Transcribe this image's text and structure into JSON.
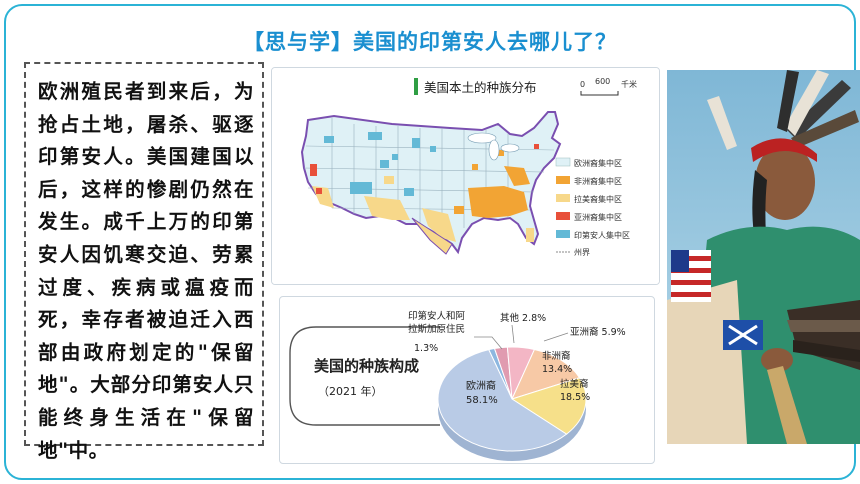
{
  "slide": {
    "title": "【思与学】美国的印第安人去哪儿了？",
    "body_text": "欧洲殖民者到来后，为抢占土地，屠杀、驱逐印第安人。美国建国以后，这样的惨剧仍然在发生。成千上万的印第安人因饥寒交迫、劳累过度、疾病或瘟疫而死，幸存者被迫迁入西部由政府划定的\"保留地\"。大部分印第安人只能终身生活在\"保留地\"中。"
  },
  "map": {
    "title": "美国本土的种族分布",
    "scale": {
      "zero": "0",
      "value": "600",
      "unit": "千米"
    },
    "legend": [
      {
        "label": "欧洲裔集中区",
        "color": "#dff1f6"
      },
      {
        "label": "非洲裔集中区",
        "color": "#f2a434"
      },
      {
        "label": "拉美裔集中区",
        "color": "#f7d88a"
      },
      {
        "label": "亚洲裔集中区",
        "color": "#e8503a"
      },
      {
        "label": "印第安人集中区",
        "color": "#63b9d6"
      },
      {
        "label": "州界",
        "color": "#888888"
      }
    ]
  },
  "pie": {
    "title": "美国的种族构成",
    "year": "（2021 年）",
    "labels": {
      "native": "印第安人和阿",
      "native2": "拉斯加原住民",
      "native_pct": "1.3%",
      "other": "其他 2.8%",
      "asian": "亚洲裔 5.9%",
      "african": "非洲裔",
      "african_pct": "13.4%",
      "latino": "拉美裔",
      "latino_pct": "18.5%",
      "european": "欧洲裔",
      "european_pct": "58.1%"
    }
  },
  "chart_data": {
    "type": "pie",
    "title": "美国的种族构成",
    "subtitle": "（2021 年）",
    "categories": [
      "欧洲裔",
      "拉美裔",
      "非洲裔",
      "亚洲裔",
      "其他",
      "印第安人和阿拉斯加原住民"
    ],
    "values": [
      58.1,
      18.5,
      13.4,
      5.9,
      2.8,
      1.3
    ],
    "colors": [
      "#b9cbe6",
      "#f6e08a",
      "#f7c9a6",
      "#f3b6c5",
      "#e09bb0",
      "#8db7e0"
    ]
  }
}
